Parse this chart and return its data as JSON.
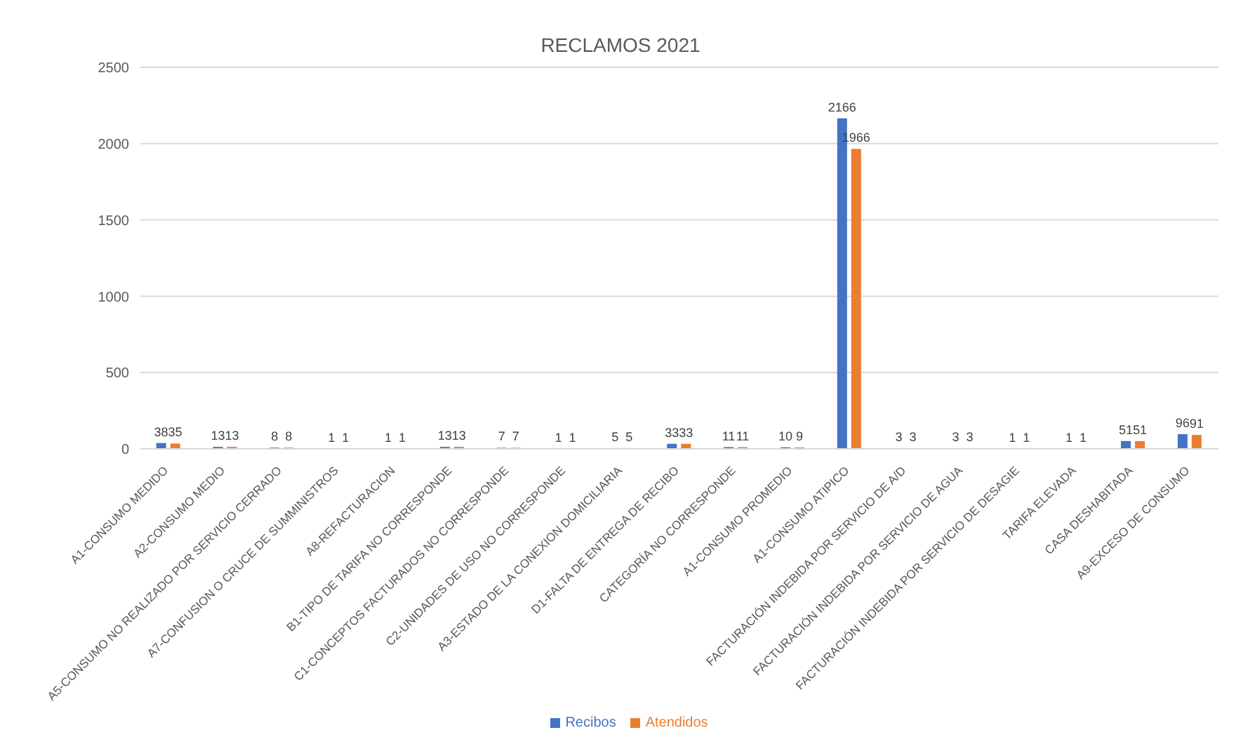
{
  "chart_data": {
    "type": "bar",
    "title": "RECLAMOS 2021",
    "categories": [
      "A1-CONSUMO MEDIDO",
      "A2-CONSUMO MEDIO",
      "A5-CONSUMO NO REALIZADO POR SERVICIO CERRADO",
      "A7-CONFUSION O CRUCE DE SUMMINISTROS",
      "A8-REFACTURACION",
      "B1-TIPO DE TARIFA NO CORRESPONDE",
      "C1-CONCEPTOS FACTURADOS NO CORRESPONDE",
      "C2-UNIDADES DE USO NO CORRESPONDE",
      "A3-ESTADO DE LA CONEXION DOMICILIARIA",
      "D1-FALTA DE ENTREGA DE RECIBO",
      "CATEGORÍA NO CORRESPONDE",
      "A1-CONSUMO PROMEDIO",
      "A1-CONSUMO ATIPICO",
      "FACTURACIÓN INDEBIDA POR SERVICIO DE A/D",
      "FACTURACIÓN INDEBIDA POR SERVICIO DE AGUA",
      "FACTURACIÓN INDEBIDA POR SERVICIO DE DESAGIE",
      "TARIFA ELEVADA",
      "CASA DESHABITADA",
      "A9-EXCESO DE CONSUMO"
    ],
    "series": [
      {
        "name": "Recibos",
        "color": "#4472c4",
        "values": [
          38,
          13,
          8,
          1,
          1,
          13,
          7,
          1,
          5,
          33,
          11,
          10,
          2166,
          3,
          3,
          1,
          1,
          51,
          96
        ]
      },
      {
        "name": "Atendidos",
        "color": "#ed7d31",
        "values": [
          35,
          13,
          8,
          1,
          1,
          13,
          7,
          1,
          5,
          33,
          11,
          9,
          1966,
          3,
          3,
          1,
          1,
          51,
          91
        ]
      }
    ],
    "ylim": [
      0,
      2500
    ],
    "yticks": [
      0,
      500,
      1000,
      1500,
      2000,
      2500
    ],
    "grid": "y",
    "legend": "bottom",
    "data_labels": true
  }
}
